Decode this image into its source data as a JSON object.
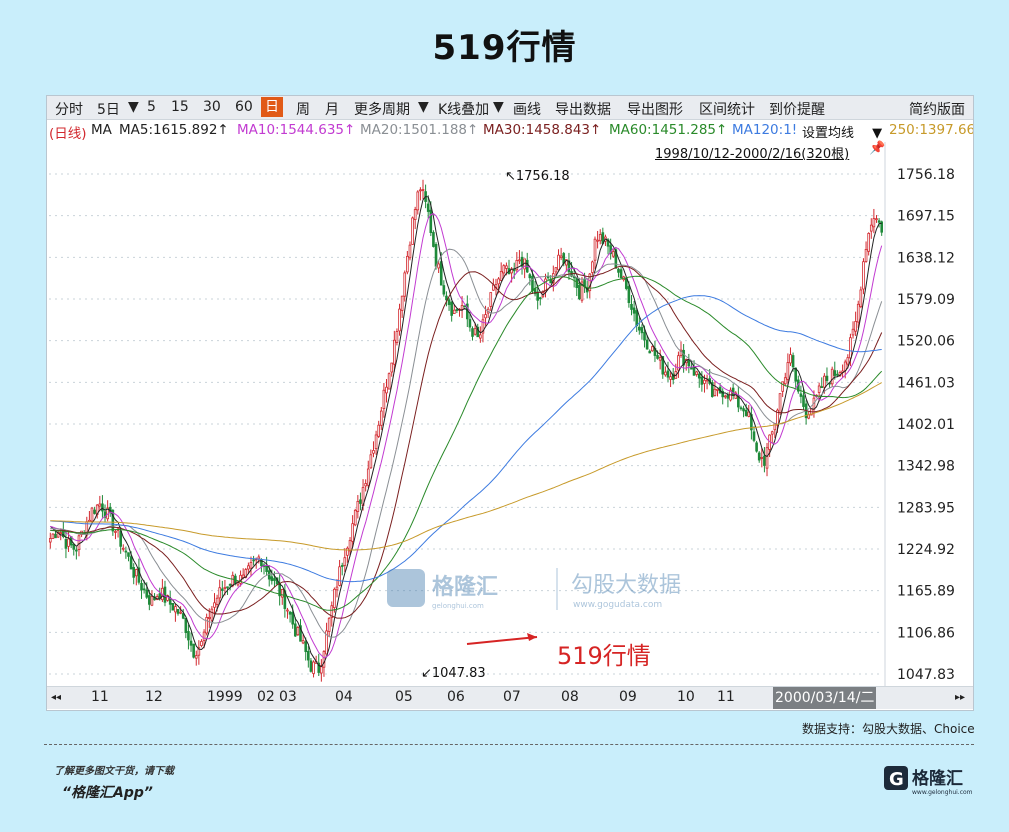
{
  "title": "519行情",
  "toolbar": {
    "items": [
      "分时",
      "5日",
      "▼",
      "5",
      "15",
      "30",
      "60",
      "日",
      "周",
      "月",
      "更多周期",
      "▼",
      "K线叠加",
      "▼",
      "画线",
      "导出数据",
      "导出图形",
      "区间统计",
      "到价提醒"
    ],
    "active": "日",
    "right": "简约版面"
  },
  "ma_legend": {
    "prefix": "(日线)",
    "ma": "MA",
    "items": [
      {
        "text": "MA5:1615.892↑",
        "color": "#222222"
      },
      {
        "text": "MA10:1544.635↑",
        "color": "#c23bd1"
      },
      {
        "text": "MA20:1501.188↑",
        "color": "#8a8f94"
      },
      {
        "text": "MA30:1458.843↑",
        "color": "#7a1f1f"
      },
      {
        "text": "MA60:1451.285↑",
        "color": "#2a8a2a"
      },
      {
        "text": "MA120:1!",
        "color": "#3d7be0"
      },
      {
        "text": "250:1397.66",
        "color": "#c79a2a"
      }
    ],
    "settings_label": "设置均线",
    "settings_arrow": "▼",
    "range_label": "1998/10/12-2000/2/16(320根)",
    "pin_icon": "📌"
  },
  "x_axis": {
    "nav_left": "◂◂",
    "nav_right": "▸▸",
    "ticks": [
      "11",
      "12",
      "1999",
      "02",
      "03",
      "04",
      "05",
      "06",
      "07",
      "08",
      "09",
      "10",
      "11"
    ],
    "current_date": "2000/03/14/二"
  },
  "chart_data": {
    "type": "candlestick",
    "title": "",
    "y_ticks": [
      1756.18,
      1697.15,
      1638.12,
      1579.09,
      1520.06,
      1461.03,
      1402.01,
      1342.98,
      1283.95,
      1224.92,
      1165.89,
      1106.86,
      1047.83
    ],
    "ylim": [
      1047.83,
      1756.18
    ],
    "annotations": [
      {
        "label": "1756.18",
        "value": 1756.18,
        "arrow": "↖"
      },
      {
        "label": "1047.83",
        "value": 1047.83,
        "arrow": "↙"
      },
      {
        "label": "519行情",
        "color": "#d62424"
      }
    ],
    "close_path": [
      1240,
      1255,
      1232,
      1225,
      1255,
      1280,
      1290,
      1270,
      1245,
      1220,
      1190,
      1170,
      1150,
      1165,
      1150,
      1140,
      1120,
      1080,
      1090,
      1135,
      1160,
      1175,
      1185,
      1180,
      1200,
      1215,
      1190,
      1170,
      1150,
      1115,
      1090,
      1060,
      1055,
      1110,
      1170,
      1220,
      1260,
      1300,
      1350,
      1400,
      1460,
      1520,
      1600,
      1680,
      1740,
      1700,
      1630,
      1590,
      1560,
      1570,
      1540,
      1520,
      1560,
      1600,
      1620,
      1610,
      1640,
      1610,
      1570,
      1600,
      1620,
      1640,
      1620,
      1590,
      1600,
      1670,
      1660,
      1640,
      1610,
      1580,
      1540,
      1520,
      1500,
      1480,
      1470,
      1500,
      1490,
      1470,
      1460,
      1440,
      1450,
      1445,
      1430,
      1420,
      1360,
      1350,
      1390,
      1450,
      1500,
      1450,
      1420,
      1430,
      1460,
      1470,
      1480,
      1500,
      1550,
      1650,
      1700,
      1680
    ],
    "colors": {
      "up": "#d2282e",
      "down": "#1f8a3a"
    }
  },
  "watermark": {
    "brand": "格隆汇",
    "sub": "gelonghui.com",
    "name": "勾股大数据",
    "url": "www.gogudata.com"
  },
  "footer": {
    "source": "数据支持：勾股大数据、Choice",
    "promo_line": "了解更多图文干货，请下载",
    "promo_app": "“格隆汇App”",
    "brand": "格隆汇",
    "brand_sub": "www.gelonghui.com"
  }
}
